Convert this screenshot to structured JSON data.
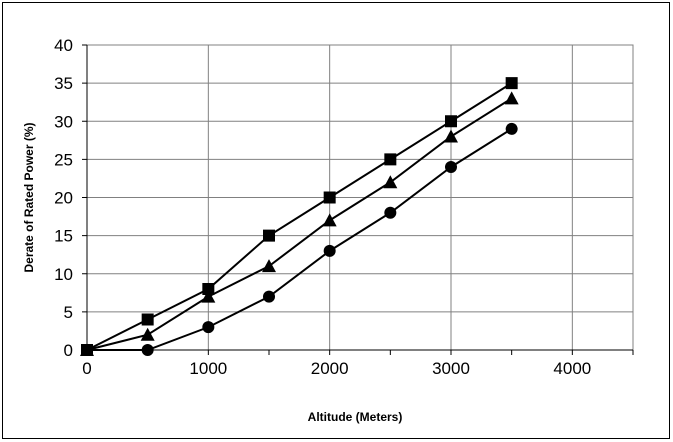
{
  "chart_data": {
    "type": "line",
    "title": "",
    "xlabel": "Altitude (Meters)",
    "ylabel": "Derate of Rated Power (%)",
    "xlim": [
      0,
      4500
    ],
    "ylim": [
      0,
      40
    ],
    "xticks": [
      0,
      1000,
      2000,
      3000,
      4000
    ],
    "yticks": [
      0,
      5,
      10,
      15,
      20,
      25,
      30,
      35,
      40
    ],
    "x_tick_labels": [
      "0",
      "1000",
      "2000",
      "3000",
      "4000"
    ],
    "y_tick_labels": [
      "0",
      "5",
      "10",
      "15",
      "20",
      "25",
      "30",
      "35",
      "40"
    ],
    "grid": true,
    "legend": "none",
    "series": [
      {
        "marker": "square",
        "color": "#000000",
        "x": [
          0,
          500,
          1000,
          1500,
          2000,
          2500,
          3000,
          3500
        ],
        "y": [
          0,
          4,
          8,
          15,
          20,
          25,
          30,
          35
        ]
      },
      {
        "marker": "triangle",
        "color": "#000000",
        "x": [
          0,
          500,
          1000,
          1500,
          2000,
          2500,
          3000,
          3500
        ],
        "y": [
          0,
          2,
          7,
          11,
          17,
          22,
          28,
          33
        ]
      },
      {
        "marker": "circle",
        "color": "#000000",
        "x": [
          0,
          500,
          1000,
          1500,
          2000,
          2500,
          3000,
          3500
        ],
        "y": [
          0,
          0,
          3,
          7,
          13,
          18,
          24,
          29
        ]
      }
    ]
  }
}
